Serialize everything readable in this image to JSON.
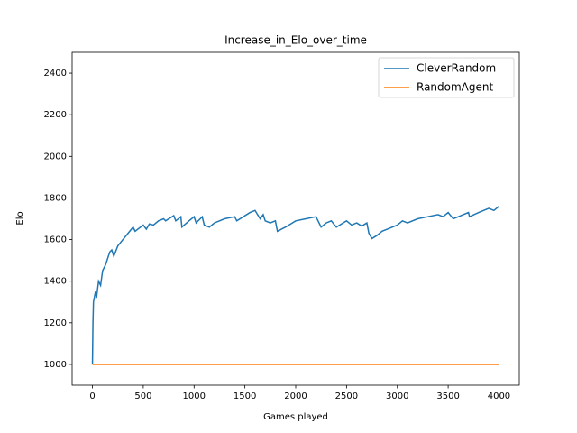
{
  "chart_data": {
    "type": "line",
    "title": "Increase_in_Elo_over_time",
    "x_label": "Games played",
    "y_label": "Elo",
    "xlim": [
      -200,
      4200
    ],
    "ylim": [
      900,
      2500
    ],
    "xticks": [
      0,
      500,
      1000,
      1500,
      2000,
      2500,
      3000,
      3500,
      4000
    ],
    "yticks": [
      1000,
      1200,
      1400,
      1600,
      1800,
      2000,
      2200,
      2400
    ],
    "legend": "upper right",
    "series": [
      {
        "name": "CleverRandom",
        "color": "#1f77b4",
        "x": [
          0,
          5,
          10,
          30,
          40,
          60,
          80,
          100,
          130,
          170,
          190,
          210,
          250,
          300,
          350,
          400,
          420,
          500,
          530,
          560,
          600,
          650,
          700,
          720,
          800,
          820,
          870,
          880,
          950,
          1000,
          1020,
          1080,
          1100,
          1150,
          1200,
          1300,
          1400,
          1420,
          1550,
          1600,
          1650,
          1680,
          1700,
          1750,
          1800,
          1820,
          1900,
          2000,
          2100,
          2200,
          2250,
          2300,
          2350,
          2400,
          2500,
          2550,
          2600,
          2650,
          2700,
          2720,
          2750,
          2800,
          2850,
          2900,
          3000,
          3050,
          3100,
          3200,
          3300,
          3400,
          3450,
          3500,
          3550,
          3700,
          3710,
          3800,
          3900,
          3950,
          4000
        ],
        "values": [
          1000,
          1200,
          1300,
          1350,
          1320,
          1400,
          1380,
          1450,
          1480,
          1540,
          1550,
          1520,
          1570,
          1600,
          1630,
          1660,
          1640,
          1670,
          1650,
          1675,
          1670,
          1690,
          1700,
          1690,
          1715,
          1690,
          1710,
          1660,
          1690,
          1710,
          1680,
          1710,
          1670,
          1660,
          1680,
          1700,
          1710,
          1690,
          1730,
          1740,
          1700,
          1720,
          1690,
          1680,
          1690,
          1640,
          1660,
          1690,
          1700,
          1710,
          1660,
          1680,
          1690,
          1660,
          1690,
          1670,
          1680,
          1665,
          1680,
          1630,
          1605,
          1620,
          1640,
          1650,
          1670,
          1690,
          1680,
          1700,
          1710,
          1720,
          1710,
          1730,
          1700,
          1730,
          1710,
          1730,
          1750,
          1740,
          1760
        ]
      },
      {
        "name": "RandomAgent",
        "color": "#ff7f0e",
        "x": [
          0,
          4000
        ],
        "values": [
          1000,
          1000
        ]
      }
    ]
  }
}
